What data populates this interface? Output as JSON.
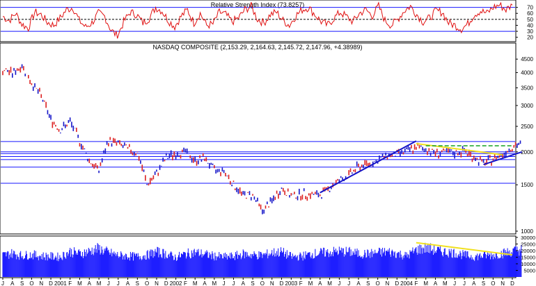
{
  "colors": {
    "frame": "#000000",
    "price_up": "#1414c8",
    "price_down": "#dc1e1e",
    "rsi_line": "#e01010",
    "support_lines": "#1414ff",
    "trend_lines": "#1414c8",
    "resistance_yellow": "#f0e020",
    "volume_fill": "#1e1eff",
    "dashed": "#10a020"
  },
  "chart_data": [
    {
      "type": "line",
      "title": "Relative Strength Index (73.8257)",
      "ylim": [
        0,
        100
      ],
      "y_ticks": [
        "70",
        "60",
        "50",
        "40",
        "30",
        "20"
      ],
      "reference_lines": [
        30,
        50,
        70
      ],
      "last_value": 73.8257,
      "series": [
        {
          "values": [
            55,
            48,
            60,
            42,
            35,
            62,
            58,
            45,
            40,
            52,
            66,
            70,
            48,
            37,
            44,
            60,
            55,
            32,
            22,
            46,
            62,
            58,
            44,
            52,
            70,
            64,
            48,
            38,
            55,
            66,
            44,
            60,
            40,
            42,
            62,
            58,
            46,
            52,
            66,
            72,
            50,
            44,
            58,
            62,
            48,
            40,
            56,
            66,
            70,
            58,
            46,
            40,
            52,
            62,
            54,
            46,
            60,
            66,
            56,
            72,
            48,
            40,
            50,
            64,
            72,
            58,
            46,
            52,
            64,
            62,
            44,
            40,
            34,
            42,
            58,
            64,
            60,
            70,
            74,
            66,
            73.8
          ]
        }
      ]
    },
    {
      "type": "line",
      "title": "NASDAQ COMPOSITE (2,153.29, 2,164.63, 2,145.72, 2,147.96, +4.38989)",
      "ylim": [
        1000,
        5000
      ],
      "y_scale": "log",
      "y_ticks": [
        "4500",
        "4000",
        "3500",
        "3000",
        "2500",
        "2000",
        "1500",
        "1000"
      ],
      "x_tick_labels": [
        "J",
        "A",
        "S",
        "O",
        "N",
        "D",
        "2001",
        "F",
        "M",
        "A",
        "M",
        "J",
        "J",
        "A",
        "S",
        "O",
        "N",
        "D",
        "2002",
        "F",
        "M",
        "A",
        "M",
        "J",
        "J",
        "A",
        "S",
        "O",
        "N",
        "D",
        "2003",
        "F",
        "M",
        "A",
        "M",
        "J",
        "J",
        "A",
        "S",
        "O",
        "N",
        "D",
        "2004",
        "F",
        "M",
        "A",
        "M",
        "J",
        "J",
        "A",
        "S",
        "O",
        "N",
        "D"
      ],
      "horizontal_lines": [
        1750,
        1520,
        2000,
        1970,
        1920,
        1870,
        2190
      ],
      "series": [
        {
          "name": "",
          "x": [
            "2000-06",
            "2000-07",
            "2000-08",
            "2000-09",
            "2000-10",
            "2000-11",
            "2000-12",
            "2001-01",
            "2001-02",
            "2001-03",
            "2001-04",
            "2001-05",
            "2001-06",
            "2001-07",
            "2001-08",
            "2001-09",
            "2001-10",
            "2001-11",
            "2001-12",
            "2002-01",
            "2002-02",
            "2002-03",
            "2002-04",
            "2002-05",
            "2002-06",
            "2002-07",
            "2002-08",
            "2002-09",
            "2002-10",
            "2002-11",
            "2002-12",
            "2003-01",
            "2003-02",
            "2003-03",
            "2003-04",
            "2003-05",
            "2003-06",
            "2003-07",
            "2003-08",
            "2003-09",
            "2003-10",
            "2003-11",
            "2003-12",
            "2004-01",
            "2004-02",
            "2004-03",
            "2004-04",
            "2004-05",
            "2004-06",
            "2004-07",
            "2004-08",
            "2004-09",
            "2004-10",
            "2004-11",
            "2004-12"
          ],
          "values": [
            4100,
            3980,
            4250,
            3650,
            3250,
            2650,
            2420,
            2600,
            2200,
            1850,
            1700,
            2200,
            2150,
            2050,
            1980,
            1500,
            1650,
            1900,
            1970,
            2000,
            1850,
            1890,
            1700,
            1690,
            1500,
            1370,
            1370,
            1190,
            1300,
            1450,
            1360,
            1380,
            1380,
            1370,
            1460,
            1560,
            1630,
            1760,
            1800,
            1860,
            1940,
            1960,
            2010,
            2080,
            2050,
            1980,
            1990,
            1980,
            2020,
            1910,
            1810,
            1880,
            1960,
            2100,
            2150
          ]
        }
      ],
      "trend_lines": [
        {
          "from": [
            "2003-03",
            1400
          ],
          "to": [
            "2004-01",
            2200
          ]
        },
        {
          "from": [
            "2004-08",
            1790
          ],
          "to": [
            "2004-12",
            2000
          ]
        }
      ],
      "resistance_lines": [
        {
          "from": [
            "2004-01",
            2150
          ],
          "to": [
            "2004-10",
            1950
          ]
        }
      ]
    },
    {
      "type": "bar",
      "title": "",
      "ylim": [
        0,
        30000
      ],
      "y_ticks": [
        "30000",
        "25000",
        "20000",
        "15000",
        "10000",
        "5000"
      ],
      "series": [
        {
          "values": [
            16000,
            17500,
            15800,
            16500,
            15500,
            15200,
            14800,
            18800,
            17200,
            19000,
            21000,
            18000,
            16000,
            15500,
            15000,
            16200,
            18500,
            17000,
            14500,
            17000,
            18200,
            16800,
            15500,
            14800,
            15200,
            17000,
            16200,
            16000,
            17800,
            18500,
            15000,
            15200,
            16800,
            17800,
            18200,
            19000,
            18500,
            17200,
            17000,
            18000,
            18600,
            17500,
            15500,
            20000,
            21500,
            19800,
            18500,
            17800,
            16200,
            15000,
            15800,
            16200,
            17500,
            19000,
            20500
          ]
        }
      ],
      "trend_line": {
        "from": [
          "2004-01",
          26000
        ],
        "to": [
          "2004-11",
          16800
        ]
      }
    }
  ]
}
